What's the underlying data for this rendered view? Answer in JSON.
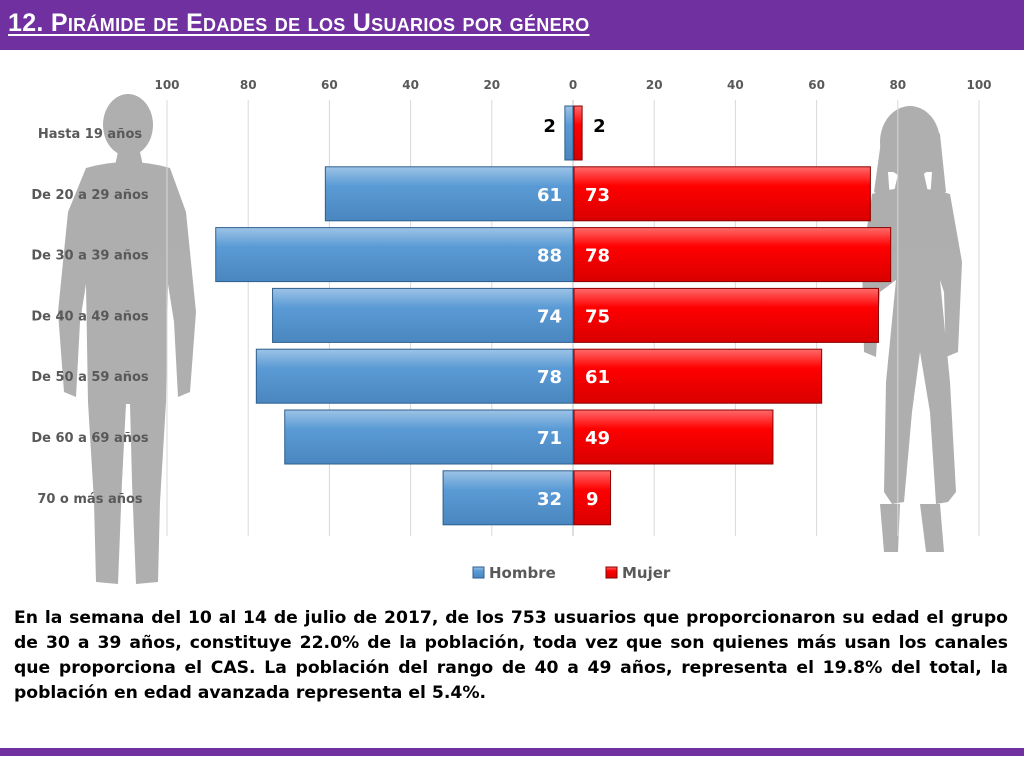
{
  "header": {
    "title": "12. Pirámide de Edades de los Usuarios por género"
  },
  "colors": {
    "accent": "#7030a0",
    "hombre": "#5b9bd5",
    "mujer": "#ff0000",
    "silhouette": "#a6a6a6"
  },
  "icons": [
    "man-silhouette-icon",
    "woman-silhouette-icon"
  ],
  "chart_data": {
    "type": "bar",
    "orientation": "horizontal",
    "title": "",
    "categories": [
      "Hasta 19 años",
      "De 20 a 29 años",
      "De 30 a 39 años",
      "De 40 a 49 años",
      "De 50 a 59 años",
      "De 60 a 69 años",
      "70 o más años"
    ],
    "series": [
      {
        "name": "Hombre",
        "values": [
          2,
          61,
          88,
          74,
          78,
          71,
          32
        ]
      },
      {
        "name": "Mujer",
        "values": [
          2,
          73,
          78,
          75,
          61,
          49,
          9
        ]
      }
    ],
    "xlim": [
      -100,
      100
    ],
    "x_tick_labels": [
      "100",
      "80",
      "60",
      "40",
      "20",
      "0",
      "20",
      "40",
      "60",
      "80",
      "100"
    ],
    "grid": true,
    "legend": "bottom"
  },
  "caption": "En la semana del 10 al 14 de julio de 2017, de los 753 usuarios  que proporcionaron su edad el grupo de 30 a 39 años, constituye 22.0% de la población, toda vez que son quienes más usan los canales que proporciona el CAS. La población del rango de 40 a 49 años, representa el 19.8% del total, la población en edad avanzada representa el 5.4%."
}
